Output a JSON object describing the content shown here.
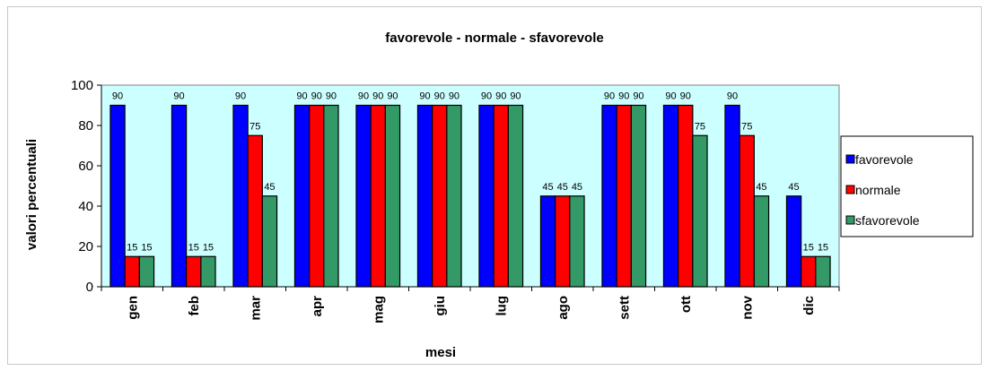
{
  "chart_data": {
    "type": "bar",
    "title": "favorevole - normale - sfavorevole",
    "xlabel": "mesi",
    "ylabel": "valori percentuali",
    "ylim": [
      0,
      100
    ],
    "yticks": [
      0,
      20,
      40,
      60,
      80,
      100
    ],
    "grid": false,
    "legend_position": "right",
    "plot_background": "#ccffff",
    "categories": [
      "gen",
      "feb",
      "mar",
      "apr",
      "mag",
      "giu",
      "lug",
      "ago",
      "sett",
      "ott",
      "nov",
      "dic"
    ],
    "series": [
      {
        "name": "favorevole",
        "color": "#0000ff",
        "values": [
          90,
          90,
          90,
          90,
          90,
          90,
          90,
          45,
          90,
          90,
          90,
          45
        ]
      },
      {
        "name": "normale",
        "color": "#ff0000",
        "values": [
          15,
          15,
          75,
          90,
          90,
          90,
          90,
          45,
          90,
          90,
          75,
          15
        ]
      },
      {
        "name": "sfavorevole",
        "color": "#339966",
        "values": [
          15,
          15,
          45,
          90,
          90,
          90,
          90,
          45,
          90,
          75,
          45,
          15
        ]
      }
    ]
  }
}
